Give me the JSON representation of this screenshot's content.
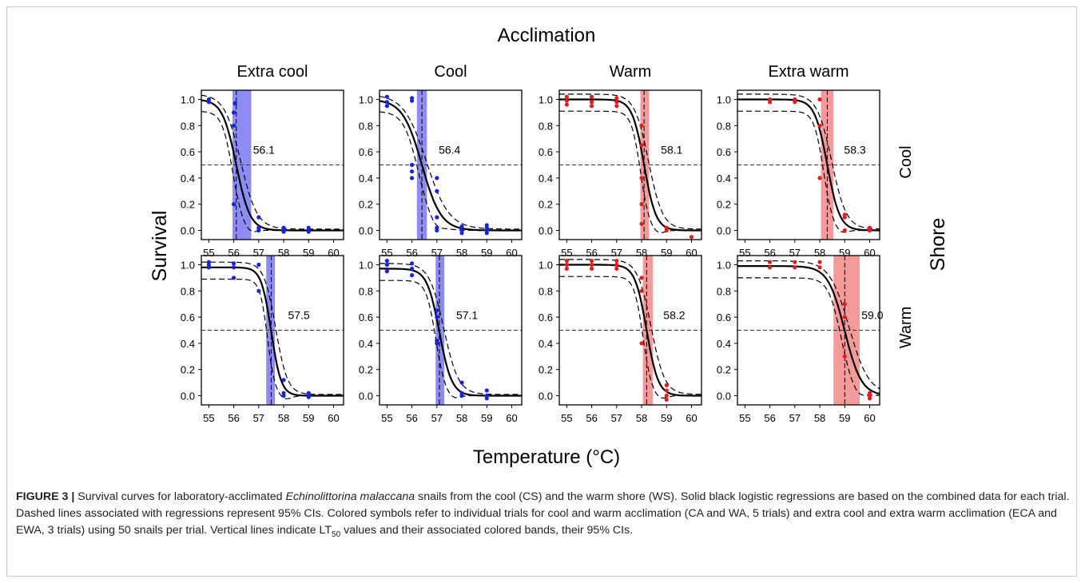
{
  "figure": {
    "group_title": "Acclimation",
    "column_titles": [
      "Extra cool",
      "Cool",
      "Warm",
      "Extra warm"
    ],
    "row_titles": [
      "Cool",
      "Warm"
    ],
    "y_title": "Survival",
    "row_group_title": "Shore",
    "x_title": "Temperature (°C)"
  },
  "colors": {
    "blue_points": "#1a23d8",
    "blue_band": "#8c8cf2",
    "red_points": "#e01e1e",
    "red_band": "#f59a9a",
    "curve": "#000000"
  },
  "chart_data": {
    "type": "scatter",
    "xticks": [
      55,
      56,
      57,
      58,
      59,
      60
    ],
    "yticks": [
      "0.0",
      "0.2",
      "0.4",
      "0.6",
      "0.8",
      "1.0"
    ],
    "xlim": [
      54.7,
      60.4
    ],
    "ylim": [
      -0.07,
      1.07
    ],
    "reference_line_y": 0.5,
    "panels": [
      {
        "row": 0,
        "col": 0,
        "color": "blue",
        "lt50": 56.1,
        "lt50_label": "56.1",
        "band": [
          55.95,
          56.7
        ],
        "k": 3.6,
        "top": 1.0,
        "points": [
          [
            55,
            1.0
          ],
          [
            55,
            0.98
          ],
          [
            56,
            0.9
          ],
          [
            56,
            0.8
          ],
          [
            56,
            0.2
          ],
          [
            56.05,
            0.97
          ],
          [
            57,
            0.1
          ],
          [
            57,
            0.02
          ],
          [
            57,
            0.0
          ],
          [
            58,
            0.02
          ],
          [
            58,
            0.0
          ],
          [
            58,
            -0.01
          ],
          [
            59,
            0.02
          ],
          [
            59,
            0.0
          ],
          [
            59,
            -0.01
          ]
        ]
      },
      {
        "row": 0,
        "col": 1,
        "color": "blue",
        "lt50": 56.4,
        "lt50_label": "56.4",
        "band": [
          56.2,
          56.6
        ],
        "k": 2.6,
        "top": 1.0,
        "points": [
          [
            55,
            1.02
          ],
          [
            55,
            0.98
          ],
          [
            55,
            0.95
          ],
          [
            56,
            1.01
          ],
          [
            56,
            0.99
          ],
          [
            56,
            0.5
          ],
          [
            56,
            0.45
          ],
          [
            56,
            0.4
          ],
          [
            57,
            0.4
          ],
          [
            57,
            0.3
          ],
          [
            57,
            0.1
          ],
          [
            57,
            0.02
          ],
          [
            57,
            0.0
          ],
          [
            58,
            0.03
          ],
          [
            58,
            0.0
          ],
          [
            58,
            -0.02
          ],
          [
            59,
            0.04
          ],
          [
            59,
            0.02
          ],
          [
            59,
            0.0
          ],
          [
            59,
            -0.02
          ]
        ]
      },
      {
        "row": 0,
        "col": 2,
        "color": "red",
        "lt50": 58.1,
        "lt50_label": "58.1",
        "band": [
          57.95,
          58.3
        ],
        "k": 4.2,
        "top": 1.0,
        "points": [
          [
            55,
            1.02
          ],
          [
            55,
            0.99
          ],
          [
            55,
            0.96
          ],
          [
            56,
            1.02
          ],
          [
            56,
            0.98
          ],
          [
            56,
            0.95
          ],
          [
            57,
            1.01
          ],
          [
            57,
            0.98
          ],
          [
            57,
            0.95
          ],
          [
            58,
            0.8
          ],
          [
            58,
            0.65
          ],
          [
            58,
            0.4
          ],
          [
            58,
            0.2
          ],
          [
            58,
            0.05
          ],
          [
            59,
            0.02
          ],
          [
            59,
            0.0
          ],
          [
            60,
            -0.05
          ]
        ]
      },
      {
        "row": 0,
        "col": 3,
        "color": "red",
        "lt50": 58.3,
        "lt50_label": "58.3",
        "band": [
          58.05,
          58.55
        ],
        "k": 4.0,
        "top": 1.0,
        "points": [
          [
            56,
            1.0
          ],
          [
            56,
            0.98
          ],
          [
            57,
            1.0
          ],
          [
            57,
            0.98
          ],
          [
            58,
            1.0
          ],
          [
            58,
            0.8
          ],
          [
            58,
            0.4
          ],
          [
            59,
            0.12
          ],
          [
            59,
            0.1
          ],
          [
            59,
            0.0
          ],
          [
            60,
            0.02
          ],
          [
            60,
            0.0
          ]
        ]
      },
      {
        "row": 1,
        "col": 0,
        "color": "blue",
        "lt50": 57.5,
        "lt50_label": "57.5",
        "band": [
          57.3,
          57.65
        ],
        "k": 5.0,
        "top": 0.98,
        "points": [
          [
            55,
            1.02
          ],
          [
            55,
            1.0
          ],
          [
            55,
            0.98
          ],
          [
            56,
            1.01
          ],
          [
            56,
            0.98
          ],
          [
            56,
            0.9
          ],
          [
            57,
            1.0
          ],
          [
            57,
            0.8
          ],
          [
            58,
            0.12
          ],
          [
            58,
            0.02
          ],
          [
            58,
            0.0
          ],
          [
            59,
            0.02
          ],
          [
            59,
            0.0
          ],
          [
            59,
            -0.01
          ]
        ]
      },
      {
        "row": 1,
        "col": 1,
        "color": "blue",
        "lt50": 57.1,
        "lt50_label": "57.1",
        "band": [
          56.95,
          57.3
        ],
        "k": 4.0,
        "top": 0.97,
        "points": [
          [
            55,
            1.03
          ],
          [
            55,
            1.0
          ],
          [
            55,
            0.95
          ],
          [
            56,
            1.01
          ],
          [
            56,
            0.97
          ],
          [
            56,
            0.92
          ],
          [
            57,
            0.65
          ],
          [
            57,
            0.6
          ],
          [
            57,
            0.42
          ],
          [
            57,
            0.4
          ],
          [
            58,
            0.1
          ],
          [
            58,
            0.02
          ],
          [
            58,
            0.0
          ],
          [
            59,
            0.04
          ],
          [
            59,
            0.0
          ],
          [
            59,
            -0.02
          ]
        ]
      },
      {
        "row": 1,
        "col": 2,
        "color": "red",
        "lt50": 58.2,
        "lt50_label": "58.2",
        "band": [
          58.05,
          58.45
        ],
        "k": 4.3,
        "top": 1.0,
        "points": [
          [
            55,
            1.03
          ],
          [
            55,
            1.0
          ],
          [
            55,
            0.97
          ],
          [
            56,
            1.03
          ],
          [
            56,
            1.0
          ],
          [
            56,
            0.97
          ],
          [
            57,
            1.03
          ],
          [
            57,
            1.0
          ],
          [
            57,
            0.97
          ],
          [
            58,
            0.9
          ],
          [
            58,
            0.8
          ],
          [
            58,
            0.4
          ],
          [
            59,
            0.08
          ],
          [
            59,
            0.04
          ],
          [
            59,
            0.0
          ],
          [
            59,
            -0.03
          ]
        ]
      },
      {
        "row": 1,
        "col": 3,
        "color": "red",
        "lt50": 59.0,
        "lt50_label": "59.0",
        "band": [
          58.55,
          59.6
        ],
        "k": 3.0,
        "top": 0.99,
        "points": [
          [
            56,
            1.02
          ],
          [
            56,
            0.98
          ],
          [
            57,
            1.02
          ],
          [
            57,
            0.98
          ],
          [
            58,
            1.02
          ],
          [
            58,
            0.98
          ],
          [
            59,
            0.7
          ],
          [
            59,
            0.6
          ],
          [
            59,
            0.3
          ],
          [
            60,
            0.02
          ],
          [
            60,
            0.0
          ],
          [
            60,
            -0.02
          ]
        ]
      }
    ]
  },
  "caption": {
    "label": "FIGURE 3 |",
    "text_1": " Survival curves for laboratory-acclimated ",
    "species": "Echinolittorina malaccana",
    "text_2": " snails from the cool (CS) and the warm shore (WS). Solid black logistic regressions are based on the combined data for each trial. Dashed lines associated with regressions represent 95% CIs. Colored symbols refer to individual trials for cool and warm acclimation (CA and WA, 5 trials) and extra cool and extra warm acclimation (ECA and EWA, 3 trials) using 50 snails per trial. Vertical lines indicate LT",
    "sub": "50",
    "text_3": " values and their associated colored bands, their 95% CIs."
  }
}
